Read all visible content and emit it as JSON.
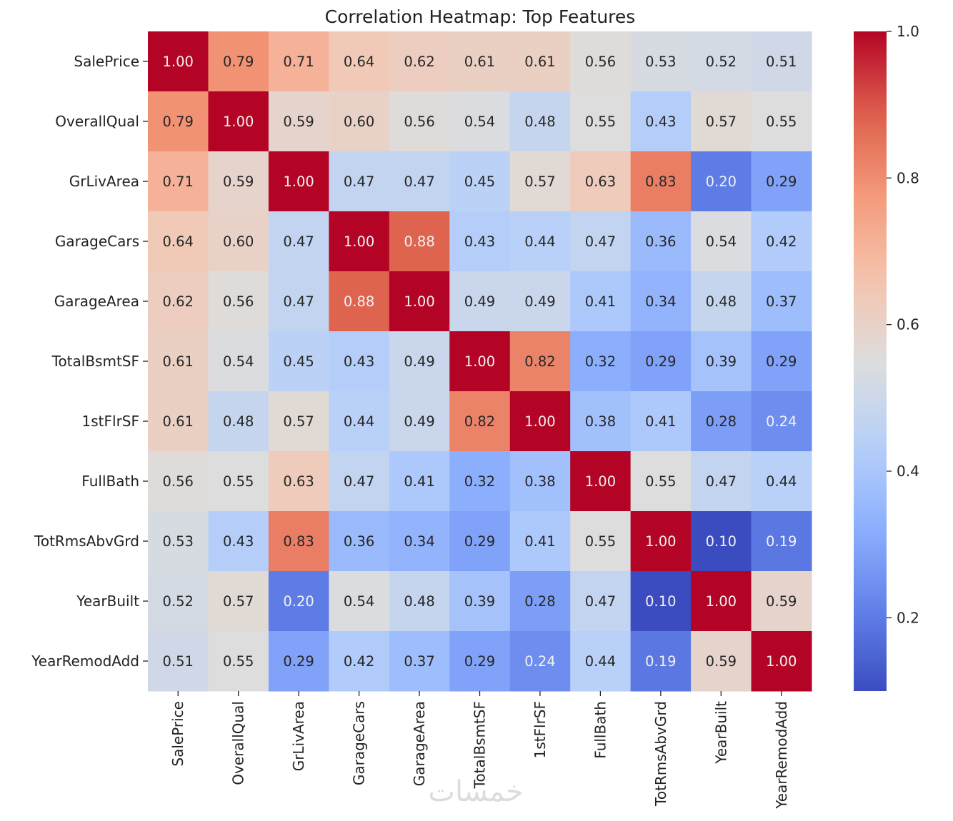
{
  "chart_data": {
    "type": "heatmap",
    "title": "Correlation Heatmap: Top Features",
    "xlabel": "",
    "ylabel": "",
    "labels": [
      "SalePrice",
      "OverallQual",
      "GrLivArea",
      "GarageCars",
      "GarageArea",
      "TotalBsmtSF",
      "1stFlrSF",
      "FullBath",
      "TotRmsAbvGrd",
      "YearBuilt",
      "YearRemodAdd"
    ],
    "matrix": [
      [
        1.0,
        0.79,
        0.71,
        0.64,
        0.62,
        0.61,
        0.61,
        0.56,
        0.53,
        0.52,
        0.51
      ],
      [
        0.79,
        1.0,
        0.59,
        0.6,
        0.56,
        0.54,
        0.48,
        0.55,
        0.43,
        0.57,
        0.55
      ],
      [
        0.71,
        0.59,
        1.0,
        0.47,
        0.47,
        0.45,
        0.57,
        0.63,
        0.83,
        0.2,
        0.29
      ],
      [
        0.64,
        0.6,
        0.47,
        1.0,
        0.88,
        0.43,
        0.44,
        0.47,
        0.36,
        0.54,
        0.42
      ],
      [
        0.62,
        0.56,
        0.47,
        0.88,
        1.0,
        0.49,
        0.49,
        0.41,
        0.34,
        0.48,
        0.37
      ],
      [
        0.61,
        0.54,
        0.45,
        0.43,
        0.49,
        1.0,
        0.82,
        0.32,
        0.29,
        0.39,
        0.29
      ],
      [
        0.61,
        0.48,
        0.57,
        0.44,
        0.49,
        0.82,
        1.0,
        0.38,
        0.41,
        0.28,
        0.24
      ],
      [
        0.56,
        0.55,
        0.63,
        0.47,
        0.41,
        0.32,
        0.38,
        1.0,
        0.55,
        0.47,
        0.44
      ],
      [
        0.53,
        0.43,
        0.83,
        0.36,
        0.34,
        0.29,
        0.41,
        0.55,
        1.0,
        0.1,
        0.19
      ],
      [
        0.52,
        0.57,
        0.2,
        0.54,
        0.48,
        0.39,
        0.28,
        0.47,
        0.1,
        1.0,
        0.59
      ],
      [
        0.51,
        0.55,
        0.29,
        0.42,
        0.37,
        0.29,
        0.24,
        0.44,
        0.19,
        0.59,
        1.0
      ]
    ],
    "annotation_format": "0.00",
    "colormap": "coolwarm",
    "vmin": 0.1,
    "vmax": 1.0,
    "colorbar": {
      "ticks": [
        0.2,
        0.4,
        0.6,
        0.8,
        1.0
      ],
      "tick_labels": [
        "0.2",
        "0.4",
        "0.6",
        "0.8",
        "1.0"
      ],
      "placement": "right"
    },
    "x_tick_rotation": "vertical",
    "grid": false,
    "legend": "none"
  },
  "watermark": "خمسات"
}
